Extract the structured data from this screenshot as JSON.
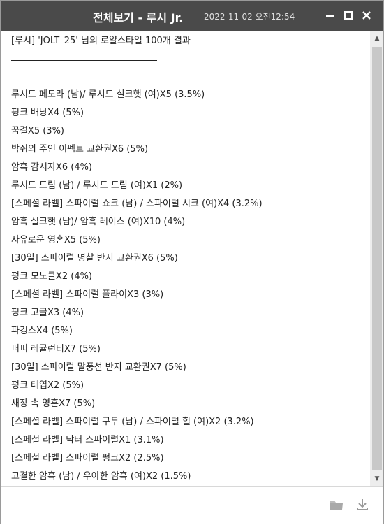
{
  "window": {
    "title": "전체보기 - 루시 Jr.",
    "datetime": "2022-11-02 오전12:54"
  },
  "controls": {
    "minimize_icon": "minimize-icon",
    "maximize_icon": "maximize-icon",
    "close_icon": "close-icon"
  },
  "content": {
    "header": "[루시] 'JOLT_25' 님의 로얄스타일 100개 결과",
    "results": [
      "루시드 페도라 (남)/ 루시드 실크햇 (여)X5 (3.5%)",
      "펑크 배낭X4 (5%)",
      "꿈결X5 (3%)",
      "박쥐의 주인 이펙트 교환권X6 (5%)",
      "암흑 감시자X6 (4%)",
      "루시드 드림 (남) / 루시드 드림 (여)X1 (2%)",
      "[스페셜 라벨] 스파이럴 쇼크 (남) / 스파이럴 시크 (여)X4 (3.2%)",
      "암흑 실크햇 (남)/ 암흑 레이스 (여)X10 (4%)",
      "자유로운 영혼X5 (5%)",
      "[30일] 스파이럴 명찰 반지 교환권X6 (5%)",
      "펑크 모노클X2 (4%)",
      "[스페셜 라벨] 스파이럴 플라이X3 (3%)",
      "펑크 고글X3 (4%)",
      "파깅스X4 (5%)",
      "퍼피 레귤런티X7 (5%)",
      "[30일] 스파이럴 말풍선 반지 교환권X7 (5%)",
      "펑크 태엽X2 (5%)",
      "새장 속 영혼X7 (5%)",
      "[스페셜 라벨] 스파이럴 구두 (남) / 스파이럴 힐 (여)X2 (3.2%)",
      "[스페셜 라벨] 닥터 스파이럴X1 (3.1%)",
      "[스페셜 라벨] 스파이럴 펑크X2 (2.5%)",
      "고결한 암흑 (남) / 우아한 암흑 (여)X2 (1.5%)"
    ]
  },
  "footer": {
    "folder_icon": "folder-icon",
    "download_icon": "download-icon"
  },
  "colors": {
    "titlebar": "#4a4a4a",
    "text": "#222222",
    "scroll_thumb": "#c8c8c8"
  }
}
